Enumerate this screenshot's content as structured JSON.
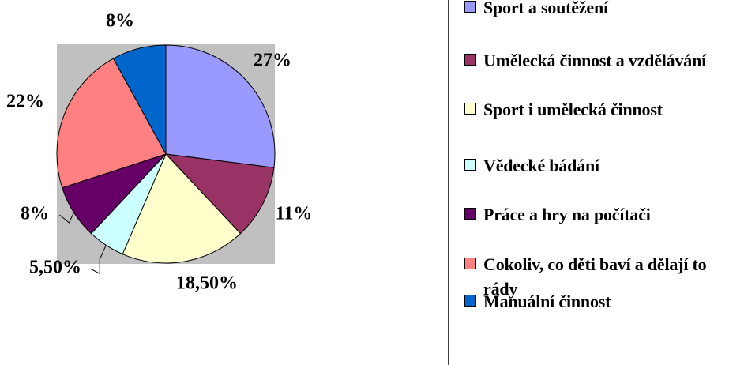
{
  "chart_data": {
    "type": "pie",
    "categories": [
      "Sport a soutěžení",
      "Umělecká činnost a vzdělávání",
      "Sport i umělecká činnost",
      "Vědecké bádání",
      "Práce a hry na počítači",
      "Cokoliv, co děti baví a dělají to rády",
      "Manuální činnost"
    ],
    "values": [
      27,
      11,
      18.5,
      5.5,
      8,
      22,
      8
    ],
    "value_labels": [
      "27%",
      "11%",
      "18,50%",
      "5,50%",
      "8%",
      "22%",
      "8%"
    ],
    "colors": [
      "#9999ff",
      "#993366",
      "#ffffcc",
      "#ccffff",
      "#660066",
      "#ff8080",
      "#0066cc"
    ]
  }
}
